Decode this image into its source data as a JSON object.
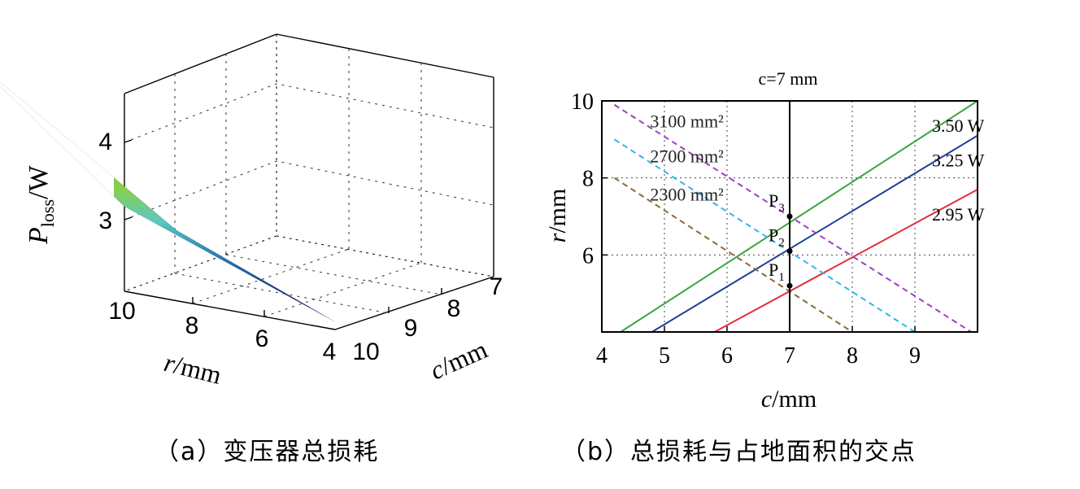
{
  "chart_data": [
    {
      "type": "surface",
      "panel_caption": "（a）变压器总损耗",
      "zlabel_main": "P",
      "zlabel_sub": "loss",
      "zlabel_unit": "/W",
      "rlabel_var": "r",
      "rlabel_unit": "/mm",
      "clabel_var": "c",
      "clabel_unit": "/mm",
      "r_ticks": [
        "10",
        "8",
        "6",
        "4"
      ],
      "c_ticks": [
        "10",
        "9",
        "8",
        "7"
      ],
      "z_ticks": [
        "4",
        "3"
      ],
      "r_range": [
        4,
        10
      ],
      "c_range": [
        7,
        10
      ],
      "z_range": [
        2.3,
        4.8
      ],
      "colormap": [
        "#440154",
        "#1e3f8a",
        "#2a7fb8",
        "#5cc8c0",
        "#8ccf4a",
        "#5bb530",
        "#c8d23a",
        "#f1a32c",
        "#e23b22"
      ],
      "corners": [
        {
          "c": 10,
          "r": 4,
          "z": 2.4
        },
        {
          "c": 7,
          "r": 4,
          "z": 2.9
        },
        {
          "c": 10,
          "r": 10,
          "z": 3.4
        },
        {
          "c": 7,
          "r": 10,
          "z": 4.7
        }
      ]
    },
    {
      "type": "line",
      "panel_caption": "（b）总损耗与占地面积的交点",
      "xlabel_var": "c",
      "xlabel_unit": "/mm",
      "ylabel_var": "r",
      "ylabel_unit": "/mm",
      "xlim": [
        4,
        10
      ],
      "ylim": [
        4,
        10
      ],
      "x_ticks": [
        "4",
        "5",
        "6",
        "7",
        "8",
        "9"
      ],
      "y_ticks": [
        "6",
        "8",
        "10"
      ],
      "grid": true,
      "vline": {
        "x": 7,
        "label": "c=7 mm",
        "color": "#000000"
      },
      "series": [
        {
          "name": "3.50 W",
          "style": "solid",
          "color": "#3aa53a",
          "points": [
            [
              4.3,
              4
            ],
            [
              10,
              10
            ]
          ]
        },
        {
          "name": "3.25 W",
          "style": "solid",
          "color": "#1f3f99",
          "points": [
            [
              4.8,
              4
            ],
            [
              10,
              9.1
            ]
          ]
        },
        {
          "name": "2.95 W",
          "style": "solid",
          "color": "#e0303a",
          "points": [
            [
              5.8,
              4
            ],
            [
              10,
              7.7
            ]
          ]
        },
        {
          "name": "3100 mm²",
          "style": "dashed",
          "color": "#9b3fbf",
          "points": [
            [
              4.2,
              9.9
            ],
            [
              9.9,
              4
            ]
          ]
        },
        {
          "name": "2700 mm²",
          "style": "dashed",
          "color": "#33b5e8",
          "points": [
            [
              4.2,
              9.0
            ],
            [
              9.0,
              4
            ]
          ]
        },
        {
          "name": "2300 mm²",
          "style": "dashed",
          "color": "#8a6a3a",
          "points": [
            [
              4.2,
              8.0
            ],
            [
              8.0,
              4
            ]
          ]
        }
      ],
      "points": [
        {
          "label": "P",
          "sub": "3",
          "x": 7,
          "y": 7.0
        },
        {
          "label": "P",
          "sub": "2",
          "x": 7,
          "y": 6.1
        },
        {
          "label": "P",
          "sub": "1",
          "x": 7,
          "y": 5.2
        }
      ]
    }
  ]
}
